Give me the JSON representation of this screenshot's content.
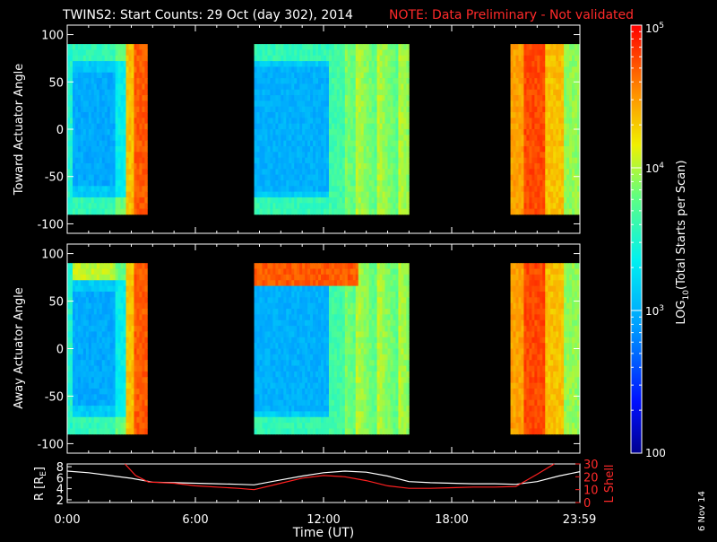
{
  "title": {
    "main": "TWINS2: Start Counts: 29 Oct (day 302), 2014",
    "note": "NOTE: Data Preliminary - Not validated"
  },
  "date_stamp": "6 Nov 14",
  "colors": {
    "background": "#000000",
    "axes": "#ffffff",
    "red_series": "#ff2020",
    "white_series": "#ffffff",
    "note": "#ff2020"
  },
  "colorbar": {
    "label_prefix": "LOG",
    "label_sub": "10",
    "label_suffix": "(Total Starts per Scan)",
    "tick_labels": [
      {
        "base": "10",
        "exp": "5",
        "value": 100000
      },
      {
        "base": "10",
        "exp": "4",
        "value": 10000
      },
      {
        "base": "10",
        "exp": "3",
        "value": 1000
      },
      {
        "base": "100",
        "exp": "",
        "value": 100
      }
    ],
    "scale": "log",
    "range": [
      100,
      100000
    ],
    "colormap": "rainbow (blue low, red high)"
  },
  "chart_data": [
    {
      "type": "heatmap",
      "ylabel": "Toward Actuator Angle",
      "ylim": [
        -110,
        110
      ],
      "yticks": [
        "100",
        "50",
        "0",
        "-50",
        "-100"
      ],
      "ytick_values": [
        100,
        50,
        0,
        -50,
        -100
      ],
      "xlim_hours": [
        0,
        24
      ],
      "data_extent_y": [
        -90,
        90
      ],
      "scale": "log",
      "data_blocks_hours": [
        [
          0.0,
          3.75
        ],
        [
          8.75,
          16.0
        ],
        [
          20.75,
          24.0
        ]
      ]
    },
    {
      "type": "heatmap",
      "ylabel": "Away Actuator Angle",
      "ylim": [
        -110,
        110
      ],
      "yticks": [
        "100",
        "50",
        "0",
        "-50",
        "-100"
      ],
      "ytick_values": [
        100,
        50,
        0,
        -50,
        -100
      ],
      "xlim_hours": [
        0,
        24
      ],
      "data_extent_y": [
        -90,
        90
      ],
      "scale": "log",
      "data_blocks_hours": [
        [
          0.0,
          3.75
        ],
        [
          8.75,
          16.0
        ],
        [
          20.75,
          24.0
        ]
      ]
    },
    {
      "type": "line",
      "ylabel_left": "R [R",
      "ylabel_left_sub": "E",
      "ylabel_left_end": "]",
      "ylabel_right": "L Shell",
      "ylim_left": [
        1.5,
        8.5
      ],
      "yticks_left": [
        "8",
        "6",
        "4",
        "2"
      ],
      "ytick_values_left": [
        8,
        6,
        4,
        2
      ],
      "ylim_right": [
        0,
        30
      ],
      "yticks_right": [
        "30",
        "20",
        "10",
        "0"
      ],
      "ytick_values_right": [
        30,
        20,
        10,
        0
      ],
      "xlabel": "Time (UT)",
      "xticks": [
        "0:00",
        "6:00",
        "12:00",
        "18:00",
        "23:59"
      ],
      "xtick_values": [
        0,
        6,
        12,
        18,
        23.98
      ],
      "series": [
        {
          "color": "white",
          "axis": "left",
          "x": [
            0,
            1,
            2,
            3,
            4,
            5,
            6,
            7,
            8,
            8.75,
            10,
            11,
            12,
            13,
            14,
            15,
            16,
            17,
            18,
            19,
            20,
            21,
            22,
            23,
            24
          ],
          "y": [
            7.2,
            6.9,
            6.4,
            5.9,
            5.2,
            5.1,
            5.0,
            4.9,
            4.8,
            4.7,
            5.6,
            6.3,
            6.9,
            7.2,
            7.0,
            6.3,
            5.3,
            5.1,
            5.0,
            4.9,
            4.9,
            4.8,
            5.3,
            6.3,
            7.1
          ]
        },
        {
          "color": "red",
          "axis": "right",
          "x": [
            2.7,
            3.2,
            3.8,
            5,
            6,
            7,
            8,
            8.75,
            10,
            11,
            12,
            13,
            14,
            15,
            16,
            17,
            18,
            19,
            20,
            21,
            22,
            22.8
          ],
          "y": [
            30,
            21,
            16,
            15,
            13,
            12,
            11,
            10,
            15,
            19,
            21,
            20,
            17,
            13,
            11,
            11,
            11.5,
            12,
            12,
            12.5,
            22,
            30
          ]
        }
      ]
    }
  ]
}
